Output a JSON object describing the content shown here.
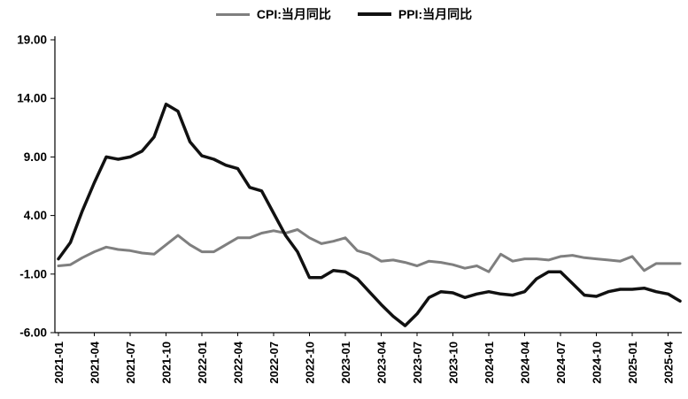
{
  "chart_data": {
    "type": "line",
    "title": "",
    "grid": false,
    "legend_position": "top",
    "ylim": [
      -6,
      19
    ],
    "ytick_step": 5,
    "y_tick_labels": [
      "19.00",
      "14.00",
      "9.00",
      "4.00",
      "-1.00",
      "-6.00"
    ],
    "x_tick_every": 3,
    "x": [
      "2021-01",
      "2021-02",
      "2021-03",
      "2021-04",
      "2021-05",
      "2021-06",
      "2021-07",
      "2021-08",
      "2021-09",
      "2021-10",
      "2021-11",
      "2021-12",
      "2022-01",
      "2022-02",
      "2022-03",
      "2022-04",
      "2022-05",
      "2022-06",
      "2022-07",
      "2022-08",
      "2022-09",
      "2022-10",
      "2022-11",
      "2022-12",
      "2023-01",
      "2023-02",
      "2023-03",
      "2023-04",
      "2023-05",
      "2023-06",
      "2023-07",
      "2023-08",
      "2023-09",
      "2023-10",
      "2023-11",
      "2023-12",
      "2024-01",
      "2024-02",
      "2024-03",
      "2024-04",
      "2024-05",
      "2024-06",
      "2024-07",
      "2024-08",
      "2024-09",
      "2024-10",
      "2024-11",
      "2024-12",
      "2025-01",
      "2025-02",
      "2025-03",
      "2025-04",
      "2025-05"
    ],
    "series": [
      {
        "name": "CPI:当月同比",
        "color": "#7f7f7f",
        "stroke_width": 3,
        "values": [
          -0.3,
          -0.2,
          0.4,
          0.9,
          1.3,
          1.1,
          1.0,
          0.8,
          0.7,
          1.5,
          2.3,
          1.5,
          0.9,
          0.9,
          1.5,
          2.1,
          2.1,
          2.5,
          2.7,
          2.5,
          2.8,
          2.1,
          1.6,
          1.8,
          2.1,
          1.0,
          0.7,
          0.1,
          0.2,
          0.0,
          -0.3,
          0.1,
          0.0,
          -0.2,
          -0.5,
          -0.3,
          -0.8,
          0.7,
          0.1,
          0.3,
          0.3,
          0.2,
          0.5,
          0.6,
          0.4,
          0.3,
          0.2,
          0.1,
          0.5,
          -0.7,
          -0.1,
          -0.1,
          -0.1
        ]
      },
      {
        "name": "PPI:当月同比",
        "color": "#111111",
        "stroke_width": 3.5,
        "values": [
          0.3,
          1.7,
          4.4,
          6.8,
          9.0,
          8.8,
          9.0,
          9.5,
          10.7,
          13.5,
          12.9,
          10.3,
          9.1,
          8.8,
          8.3,
          8.0,
          6.4,
          6.1,
          4.2,
          2.3,
          0.9,
          -1.3,
          -1.3,
          -0.7,
          -0.8,
          -1.4,
          -2.5,
          -3.6,
          -4.6,
          -5.4,
          -4.4,
          -3.0,
          -2.5,
          -2.6,
          -3.0,
          -2.7,
          -2.5,
          -2.7,
          -2.8,
          -2.5,
          -1.4,
          -0.8,
          -0.8,
          -1.8,
          -2.8,
          -2.9,
          -2.5,
          -2.3,
          -2.3,
          -2.2,
          -2.5,
          -2.7,
          -3.3
        ]
      }
    ],
    "colors": {
      "axis": "#000000",
      "background": "#ffffff"
    }
  }
}
